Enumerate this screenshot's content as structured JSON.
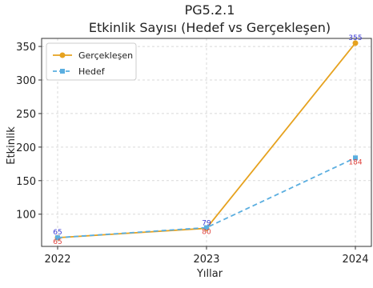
{
  "chart_data": {
    "type": "line",
    "title": "PG5.2.1",
    "subtitle": "Etkinlik Sayısı (Hedef vs Gerçekleşen)",
    "xlabel": "Yıllar",
    "ylabel": "Etkinlik",
    "x": [
      "2022",
      "2023",
      "2024"
    ],
    "ylim": [
      52,
      362
    ],
    "yticks": [
      100,
      150,
      200,
      250,
      300,
      350
    ],
    "grid": true,
    "legend_position": "top-left",
    "series": [
      {
        "name": "Gerçekleşen",
        "values": [
          65,
          79,
          355
        ],
        "color": "#e6a21f",
        "linestyle": "solid",
        "marker": "circle",
        "labels": [
          "65",
          "79",
          "355"
        ],
        "label_color": "#3b3bd6"
      },
      {
        "name": "Hedef",
        "values": [
          65,
          80,
          184
        ],
        "color": "#5aaee0",
        "linestyle": "dashed",
        "marker": "square",
        "labels": [
          "65",
          "80",
          "184"
        ],
        "label_color": "#e0403a"
      }
    ]
  }
}
